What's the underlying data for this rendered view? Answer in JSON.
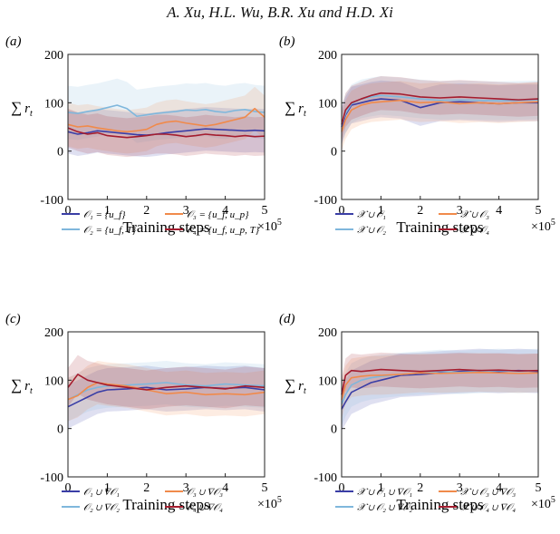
{
  "header": "A. Xu, H.L. Wu, B.R. Xu and H.D. Xi",
  "colors": {
    "series1": "#3a3ea6",
    "series2": "#7fb7dc",
    "series3": "#f08a4b",
    "series4": "#a41c2e"
  },
  "chart_data": [
    {
      "type": "line",
      "panel": "(a)",
      "xlabel": "Training steps",
      "ylabel": "∑ r_t",
      "x_multiplier": "×10^5",
      "xlim": [
        0,
        5
      ],
      "ylim": [
        -100,
        200
      ],
      "xticks": [
        "0",
        "1",
        "2",
        "3",
        "4",
        "5"
      ],
      "yticks": [
        "-100",
        "0",
        "100",
        "200"
      ],
      "grid": false,
      "legend_position": "below",
      "series": [
        {
          "name": "𝒪₁ = {u_f}",
          "x": [
            0,
            0.25,
            0.5,
            0.75,
            1,
            1.25,
            1.5,
            1.75,
            2,
            2.25,
            2.5,
            2.75,
            3,
            3.25,
            3.5,
            3.75,
            4,
            4.25,
            4.5,
            4.75,
            5
          ],
          "y": [
            40,
            35,
            38,
            42,
            40,
            38,
            36,
            34,
            33,
            35,
            38,
            40,
            42,
            44,
            46,
            45,
            44,
            43,
            42,
            43,
            42
          ],
          "band": 45
        },
        {
          "name": "𝒪₂ = {u_f, T}",
          "x": [
            0,
            0.25,
            0.5,
            0.75,
            1,
            1.25,
            1.5,
            1.75,
            2,
            2.25,
            2.5,
            2.75,
            3,
            3.25,
            3.5,
            3.75,
            4,
            4.25,
            4.5,
            4.75,
            5
          ],
          "y": [
            80,
            78,
            82,
            85,
            90,
            95,
            88,
            72,
            75,
            78,
            80,
            82,
            85,
            84,
            86,
            82,
            80,
            84,
            86,
            82,
            80
          ],
          "band": 55
        },
        {
          "name": "𝒪₃ = {u_f, u_p}",
          "x": [
            0,
            0.25,
            0.5,
            0.75,
            1,
            1.25,
            1.5,
            1.75,
            2,
            2.25,
            2.5,
            2.75,
            3,
            3.25,
            3.5,
            3.75,
            4,
            4.25,
            4.5,
            4.75,
            5
          ],
          "y": [
            55,
            50,
            52,
            48,
            45,
            42,
            40,
            42,
            45,
            55,
            60,
            62,
            58,
            55,
            52,
            55,
            60,
            65,
            70,
            88,
            70
          ],
          "band": 45
        },
        {
          "name": "𝒪₄ = {u_f, u_p, T}",
          "x": [
            0,
            0.25,
            0.5,
            0.75,
            1,
            1.25,
            1.5,
            1.75,
            2,
            2.25,
            2.5,
            2.75,
            3,
            3.25,
            3.5,
            3.75,
            4,
            4.25,
            4.5,
            4.75,
            5
          ],
          "y": [
            48,
            40,
            35,
            38,
            32,
            30,
            28,
            30,
            32,
            35,
            35,
            33,
            30,
            32,
            35,
            33,
            32,
            30,
            32,
            30,
            31
          ],
          "band": 40
        }
      ]
    },
    {
      "type": "line",
      "panel": "(b)",
      "xlabel": "Training steps",
      "ylabel": "∑ r_t",
      "x_multiplier": "×10^5",
      "xlim": [
        0,
        5
      ],
      "ylim": [
        -100,
        200
      ],
      "xticks": [
        "0",
        "1",
        "2",
        "3",
        "4",
        "5"
      ],
      "yticks": [
        "-100",
        "0",
        "100",
        "200"
      ],
      "grid": false,
      "legend_position": "below",
      "series": [
        {
          "name": "𝒳 ∪ 𝒪₁",
          "x": [
            0,
            0.1,
            0.25,
            0.5,
            0.75,
            1,
            1.5,
            2,
            2.5,
            3,
            3.5,
            4,
            4.5,
            5
          ],
          "y": [
            50,
            75,
            95,
            100,
            105,
            108,
            105,
            90,
            100,
            102,
            100,
            98,
            100,
            100
          ],
          "band": 38
        },
        {
          "name": "𝒳 ∪ 𝒪₂",
          "x": [
            0,
            0.1,
            0.25,
            0.5,
            0.75,
            1,
            1.5,
            2,
            2.5,
            3,
            3.5,
            4,
            4.5,
            5
          ],
          "y": [
            55,
            78,
            98,
            108,
            112,
            115,
            112,
            108,
            105,
            106,
            105,
            104,
            105,
            106
          ],
          "band": 40
        },
        {
          "name": "𝒳 ∪ 𝒪₃",
          "x": [
            0,
            0.1,
            0.25,
            0.5,
            0.75,
            1,
            1.5,
            2,
            2.5,
            3,
            3.5,
            4,
            4.5,
            5
          ],
          "y": [
            40,
            65,
            85,
            95,
            100,
            102,
            105,
            100,
            102,
            98,
            100,
            98,
            100,
            102
          ],
          "band": 40
        },
        {
          "name": "𝒳 ∪ 𝒪₄",
          "x": [
            0,
            0.1,
            0.25,
            0.5,
            0.75,
            1,
            1.5,
            2,
            2.5,
            3,
            3.5,
            4,
            4.5,
            5
          ],
          "y": [
            55,
            85,
            100,
            108,
            115,
            120,
            118,
            112,
            110,
            112,
            110,
            108,
            106,
            108
          ],
          "band": 35
        }
      ]
    },
    {
      "type": "line",
      "panel": "(c)",
      "xlabel": "Training steps",
      "ylabel": "∑ r_t",
      "x_multiplier": "×10^5",
      "xlim": [
        0,
        5
      ],
      "ylim": [
        -100,
        200
      ],
      "xticks": [
        "0",
        "1",
        "2",
        "3",
        "4",
        "5"
      ],
      "yticks": [
        "-100",
        "0",
        "100",
        "200"
      ],
      "grid": false,
      "legend_position": "below",
      "series": [
        {
          "name": "𝒪₁ ∪ ∇𝒪₁",
          "x": [
            0,
            0.25,
            0.5,
            0.75,
            1,
            1.5,
            2,
            2.5,
            3,
            3.5,
            4,
            4.5,
            5
          ],
          "y": [
            45,
            55,
            65,
            75,
            80,
            82,
            85,
            80,
            82,
            85,
            83,
            85,
            80
          ],
          "band": 45
        },
        {
          "name": "𝒪₂ ∪ ∇𝒪₂",
          "x": [
            0,
            0.25,
            0.5,
            0.75,
            1,
            1.5,
            2,
            2.5,
            3,
            3.5,
            4,
            4.5,
            5
          ],
          "y": [
            60,
            70,
            80,
            85,
            88,
            90,
            92,
            95,
            90,
            88,
            92,
            90,
            88
          ],
          "band": 45
        },
        {
          "name": "𝒪₃ ∪ ∇𝒪₃",
          "x": [
            0,
            0.25,
            0.5,
            0.75,
            1,
            1.5,
            2,
            2.5,
            3,
            3.5,
            4,
            4.5,
            5
          ],
          "y": [
            60,
            68,
            85,
            95,
            92,
            88,
            80,
            72,
            75,
            70,
            72,
            70,
            75
          ],
          "band": 45
        },
        {
          "name": "𝒪₄ ∪ ∇𝒪₄",
          "x": [
            0,
            0.25,
            0.5,
            0.75,
            1,
            1.5,
            2,
            2.5,
            3,
            3.5,
            4,
            4.5,
            5
          ],
          "y": [
            85,
            112,
            100,
            95,
            90,
            85,
            80,
            85,
            88,
            85,
            82,
            88,
            85
          ],
          "band": 40
        }
      ]
    },
    {
      "type": "line",
      "panel": "(d)",
      "xlabel": "Training steps",
      "ylabel": "∑ r_t",
      "x_multiplier": "×10^5",
      "xlim": [
        0,
        5
      ],
      "ylim": [
        -100,
        200
      ],
      "xticks": [
        "0",
        "1",
        "2",
        "3",
        "4",
        "5"
      ],
      "yticks": [
        "-100",
        "0",
        "100",
        "200"
      ],
      "grid": false,
      "legend_position": "below",
      "series": [
        {
          "name": "𝒳 ∪ 𝒪₁ ∪ ∇𝒪₁",
          "x": [
            0,
            0.1,
            0.25,
            0.5,
            0.75,
            1,
            1.5,
            2,
            2.5,
            3,
            3.5,
            4,
            4.5,
            5
          ],
          "y": [
            40,
            55,
            75,
            85,
            95,
            100,
            110,
            112,
            115,
            118,
            120,
            118,
            120,
            118
          ],
          "band": 45
        },
        {
          "name": "𝒳 ∪ 𝒪₂ ∪ ∇𝒪₂",
          "x": [
            0,
            0.1,
            0.25,
            0.5,
            0.75,
            1,
            1.5,
            2,
            2.5,
            3,
            3.5,
            4,
            4.5,
            5
          ],
          "y": [
            50,
            70,
            90,
            100,
            105,
            108,
            112,
            115,
            118,
            116,
            118,
            120,
            118,
            120
          ],
          "band": 45
        },
        {
          "name": "𝒳 ∪ 𝒪₃ ∪ ∇𝒪₃",
          "x": [
            0,
            0.1,
            0.25,
            0.5,
            0.75,
            1,
            1.5,
            2,
            2.5,
            3,
            3.5,
            4,
            4.5,
            5
          ],
          "y": [
            60,
            90,
            105,
            108,
            110,
            110,
            112,
            115,
            114,
            115,
            116,
            115,
            114,
            115
          ],
          "band": 40
        },
        {
          "name": "𝒳 ∪ 𝒪₄ ∪ ∇𝒪₄",
          "x": [
            0,
            0.1,
            0.25,
            0.5,
            0.75,
            1,
            1.5,
            2,
            2.5,
            3,
            3.5,
            4,
            4.5,
            5
          ],
          "y": [
            70,
            110,
            120,
            118,
            120,
            122,
            120,
            118,
            120,
            122,
            120,
            121,
            119,
            120
          ],
          "band": 35
        }
      ]
    }
  ]
}
